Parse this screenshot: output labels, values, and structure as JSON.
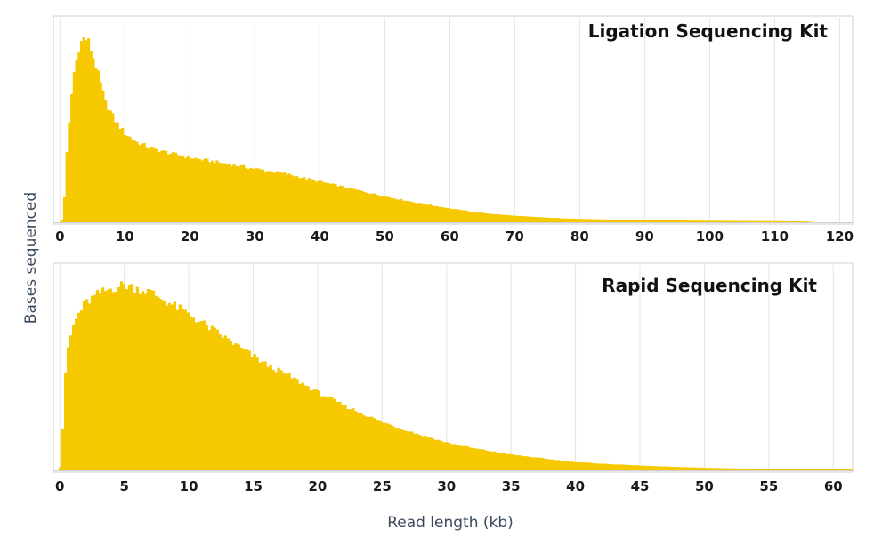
{
  "figure": {
    "y_axis_label": "Bases sequenced",
    "x_axis_label": "Read length (kb)",
    "bar_color": "#f5c800",
    "grid_color": "#e4e4e4",
    "frame_color": "#d0d0d0"
  },
  "chart_data": [
    {
      "type": "bar",
      "title": "Ligation Sequencing Kit",
      "xlabel": "",
      "ylabel": "",
      "x_ticks": [
        "0",
        "10",
        "20",
        "30",
        "40",
        "50",
        "60",
        "70",
        "80",
        "90",
        "100",
        "110",
        "120"
      ],
      "xlim": [
        -1,
        122
      ],
      "ylim": [
        0,
        1
      ],
      "grid": "vertical",
      "profile_kb": [
        0,
        0.5,
        1,
        2,
        3,
        3.8,
        4.5,
        5.5,
        7,
        8.5,
        10,
        12,
        15,
        20,
        25,
        30,
        35,
        40,
        45,
        50,
        55,
        60,
        65,
        70,
        75,
        80,
        85,
        90,
        95,
        100,
        105,
        110,
        115,
        116,
        122
      ],
      "profile_relative": [
        0,
        0.02,
        0.35,
        0.78,
        0.96,
        1.0,
        0.97,
        0.85,
        0.65,
        0.55,
        0.48,
        0.43,
        0.39,
        0.35,
        0.32,
        0.29,
        0.26,
        0.22,
        0.18,
        0.14,
        0.105,
        0.075,
        0.05,
        0.035,
        0.025,
        0.018,
        0.014,
        0.012,
        0.01,
        0.008,
        0.007,
        0.006,
        0.004,
        0,
        0
      ]
    },
    {
      "type": "bar",
      "title": "Rapid Sequencing Kit",
      "xlabel": "",
      "ylabel": "",
      "x_ticks": [
        "0",
        "5",
        "10",
        "15",
        "20",
        "25",
        "30",
        "35",
        "40",
        "45",
        "50",
        "55",
        "60"
      ],
      "xlim": [
        -0.5,
        61.5
      ],
      "ylim": [
        0,
        1
      ],
      "grid": "vertical",
      "profile_kb": [
        0,
        0.3,
        0.5,
        1,
        1.5,
        2,
        3,
        4,
        5,
        6,
        7,
        8,
        10,
        12,
        14,
        16,
        18,
        20,
        22,
        25,
        28,
        30,
        32,
        35,
        38,
        40,
        42,
        45,
        48,
        50,
        52,
        55,
        58,
        61.5
      ],
      "profile_relative": [
        0,
        0.3,
        0.62,
        0.77,
        0.85,
        0.9,
        0.95,
        0.98,
        1.0,
        0.98,
        0.96,
        0.92,
        0.84,
        0.75,
        0.66,
        0.57,
        0.5,
        0.42,
        0.35,
        0.26,
        0.19,
        0.15,
        0.12,
        0.085,
        0.06,
        0.045,
        0.036,
        0.026,
        0.018,
        0.014,
        0.011,
        0.008,
        0.006,
        0.005
      ]
    }
  ]
}
